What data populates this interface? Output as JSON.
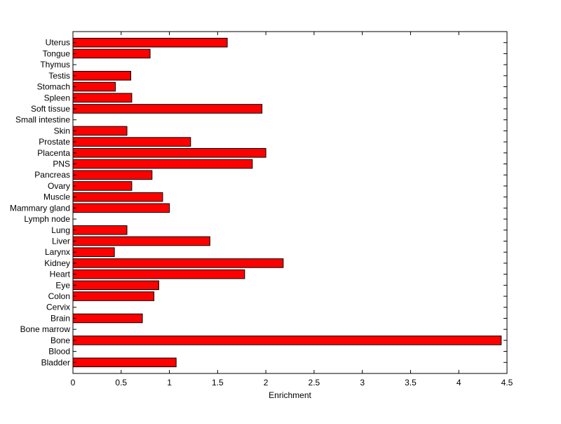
{
  "chart_data": {
    "type": "bar",
    "orientation": "horizontal",
    "title": "",
    "xlabel": "Enrichment",
    "ylabel": "",
    "xlim": [
      0,
      4.5
    ],
    "xticks": [
      "0",
      "0.5",
      "1",
      "1.5",
      "2",
      "2.5",
      "3",
      "3.5",
      "4",
      "4.5"
    ],
    "grid": false,
    "bar_color": "#ff0000",
    "bar_edge_color": "#000000",
    "categories": [
      "Bladder",
      "Blood",
      "Bone",
      "Bone marrow",
      "Brain",
      "Cervix",
      "Colon",
      "Eye",
      "Heart",
      "Kidney",
      "Larynx",
      "Liver",
      "Lung",
      "Lymph node",
      "Mammary gland",
      "Muscle",
      "Ovary",
      "Pancreas",
      "PNS",
      "Placenta",
      "Prostate",
      "Skin",
      "Small intestine",
      "Soft tissue",
      "Spleen",
      "Stomach",
      "Testis",
      "Thymus",
      "Tongue",
      "Uterus"
    ],
    "values": [
      1.07,
      0,
      4.44,
      0,
      0.72,
      0,
      0.84,
      0.89,
      1.78,
      2.18,
      0.43,
      1.42,
      0.56,
      0,
      1.0,
      0.93,
      0.61,
      0.82,
      1.86,
      2.0,
      1.22,
      0.56,
      0,
      1.96,
      0.61,
      0.44,
      0.6,
      0,
      0.8,
      1.6
    ]
  }
}
